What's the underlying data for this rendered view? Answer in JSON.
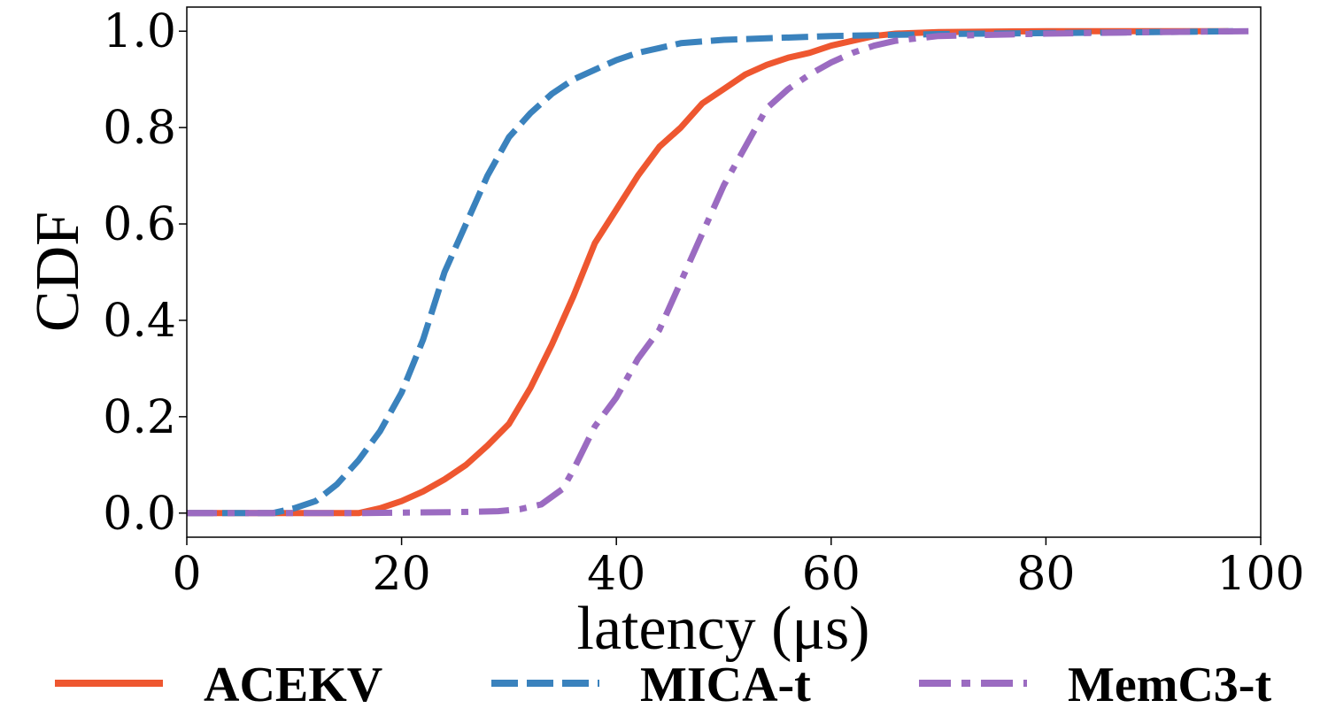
{
  "chart_data": {
    "type": "line",
    "title": "",
    "xlabel": "latency (μs)",
    "ylabel": "CDF",
    "xlim": [
      0,
      100
    ],
    "ylim": [
      -0.05,
      1.05
    ],
    "xticks": [
      0,
      20,
      40,
      60,
      80,
      100
    ],
    "xtick_labels": [
      "0",
      "20",
      "40",
      "60",
      "80",
      "100"
    ],
    "yticks": [
      0.0,
      0.2,
      0.4,
      0.6,
      0.8,
      1.0
    ],
    "ytick_labels": [
      "0.0",
      "0.2",
      "0.4",
      "0.6",
      "0.8",
      "1.0"
    ],
    "grid": false,
    "legend_position": "bottom",
    "series": [
      {
        "name": "ACEKV",
        "color": "#EE5730",
        "style": "solid",
        "points": [
          [
            0,
            0
          ],
          [
            4,
            0
          ],
          [
            16,
            0
          ],
          [
            18,
            0.01
          ],
          [
            20,
            0.025
          ],
          [
            22,
            0.045
          ],
          [
            24,
            0.07
          ],
          [
            26,
            0.1
          ],
          [
            28,
            0.14
          ],
          [
            30,
            0.185
          ],
          [
            32,
            0.26
          ],
          [
            34,
            0.35
          ],
          [
            36,
            0.45
          ],
          [
            38,
            0.56
          ],
          [
            40,
            0.63
          ],
          [
            42,
            0.7
          ],
          [
            44,
            0.76
          ],
          [
            46,
            0.8
          ],
          [
            48,
            0.85
          ],
          [
            50,
            0.88
          ],
          [
            52,
            0.91
          ],
          [
            54,
            0.93
          ],
          [
            56,
            0.945
          ],
          [
            58,
            0.955
          ],
          [
            60,
            0.97
          ],
          [
            62,
            0.98
          ],
          [
            64,
            0.99
          ],
          [
            66,
            0.995
          ],
          [
            70,
            0.998
          ],
          [
            80,
            1.0
          ],
          [
            97,
            1.0
          ]
        ]
      },
      {
        "name": "MICA-t",
        "color": "#3A82BD",
        "style": "dashed",
        "points": [
          [
            0,
            0
          ],
          [
            4,
            0
          ],
          [
            8,
            0
          ],
          [
            10,
            0.01
          ],
          [
            12,
            0.025
          ],
          [
            14,
            0.06
          ],
          [
            16,
            0.11
          ],
          [
            18,
            0.17
          ],
          [
            20,
            0.25
          ],
          [
            22,
            0.36
          ],
          [
            24,
            0.5
          ],
          [
            26,
            0.6
          ],
          [
            28,
            0.7
          ],
          [
            30,
            0.78
          ],
          [
            32,
            0.83
          ],
          [
            34,
            0.87
          ],
          [
            36,
            0.9
          ],
          [
            38,
            0.92
          ],
          [
            40,
            0.94
          ],
          [
            42,
            0.955
          ],
          [
            44,
            0.965
          ],
          [
            46,
            0.975
          ],
          [
            50,
            0.982
          ],
          [
            60,
            0.99
          ],
          [
            70,
            0.994
          ],
          [
            80,
            0.996
          ],
          [
            90,
            0.998
          ],
          [
            98,
            1.0
          ]
        ]
      },
      {
        "name": "MemC3-t",
        "color": "#9B6BC1",
        "style": "dashdot",
        "points": [
          [
            0,
            0
          ],
          [
            4,
            0
          ],
          [
            16,
            0
          ],
          [
            20,
            0.001
          ],
          [
            25,
            0.002
          ],
          [
            29,
            0.004
          ],
          [
            31,
            0.008
          ],
          [
            33,
            0.018
          ],
          [
            35,
            0.05
          ],
          [
            36,
            0.09
          ],
          [
            38,
            0.18
          ],
          [
            40,
            0.24
          ],
          [
            42,
            0.32
          ],
          [
            44,
            0.38
          ],
          [
            46,
            0.48
          ],
          [
            48,
            0.58
          ],
          [
            50,
            0.68
          ],
          [
            52,
            0.76
          ],
          [
            54,
            0.84
          ],
          [
            56,
            0.88
          ],
          [
            58,
            0.91
          ],
          [
            60,
            0.935
          ],
          [
            62,
            0.955
          ],
          [
            64,
            0.97
          ],
          [
            66,
            0.98
          ],
          [
            70,
            0.99
          ],
          [
            80,
            0.995
          ],
          [
            90,
            0.998
          ],
          [
            99,
            1.0
          ]
        ]
      }
    ]
  }
}
